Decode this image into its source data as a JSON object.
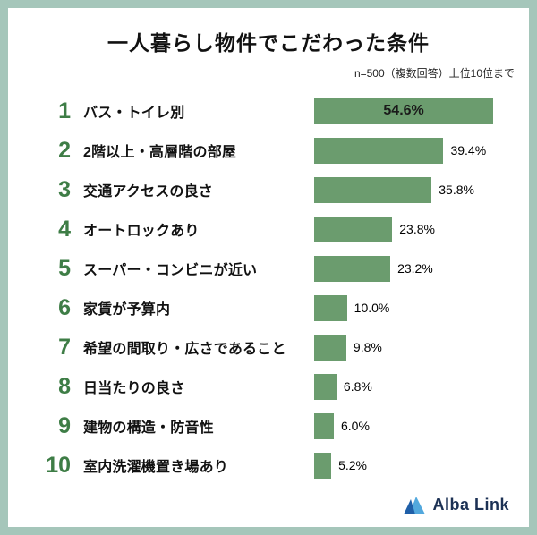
{
  "frame": {
    "border_color": "#a5c6ba"
  },
  "header": {
    "title": "一人暮らし物件でこだわった条件",
    "note": "n=500（複数回答）上位10位まで"
  },
  "chart_data": {
    "type": "bar",
    "orientation": "horizontal",
    "title": "一人暮らし物件でこだわった条件",
    "note": "n=500（複数回答）上位10位まで",
    "xlim": [
      0,
      60
    ],
    "grid": false,
    "legend": false,
    "bar_color": "#6b9c6e",
    "rank_color": "#3e7d46",
    "ranks": [
      "1",
      "2",
      "3",
      "4",
      "5",
      "6",
      "7",
      "8",
      "9",
      "10"
    ],
    "categories": [
      "バス・トイレ別",
      "2階以上・高層階の部屋",
      "交通アクセスの良さ",
      "オートロックあり",
      "スーパー・コンビニが近い",
      "家賃が予算内",
      "希望の間取り・広さであること",
      "日当たりの良さ",
      "建物の構造・防音性",
      "室内洗濯機置き場あり"
    ],
    "values": [
      54.6,
      39.4,
      35.8,
      23.8,
      23.2,
      10.0,
      9.8,
      6.8,
      6.0,
      5.2
    ],
    "value_labels": [
      "54.6%",
      "39.4%",
      "35.8%",
      "23.8%",
      "23.2%",
      "10.0%",
      "9.8%",
      "6.8%",
      "6.0%",
      "5.2%"
    ],
    "value_label_inside_rows": [
      0
    ]
  },
  "footer": {
    "logo_text": "Alba Link",
    "logo_colors": {
      "dark": "#1f5fa8",
      "light": "#52a8dd",
      "text": "#1c3154"
    }
  }
}
